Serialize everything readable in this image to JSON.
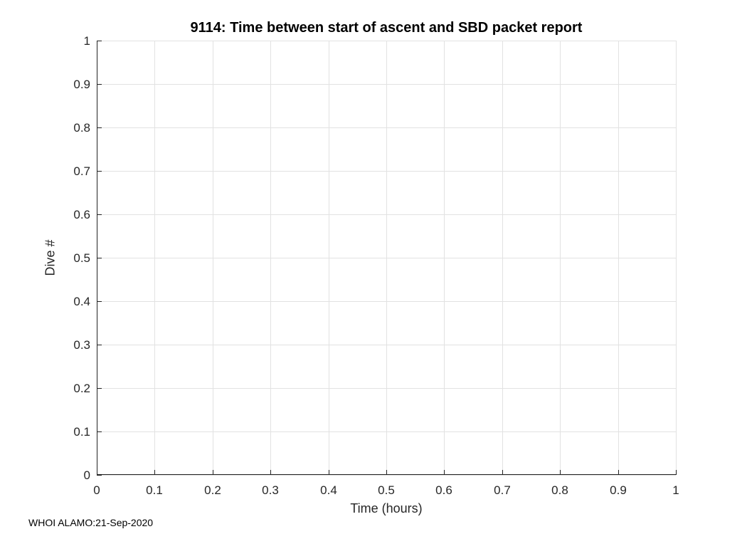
{
  "chart_data": {
    "type": "scatter",
    "title": "9114: Time between start of ascent and SBD packet report",
    "xlabel": "Time (hours)",
    "ylabel": "Dive #",
    "xlim": [
      0,
      1
    ],
    "ylim": [
      0,
      1
    ],
    "xticks": {
      "values": [
        0,
        0.1,
        0.2,
        0.3,
        0.4,
        0.5,
        0.6,
        0.7,
        0.8,
        0.9,
        1
      ],
      "labels": [
        "0",
        "0.1",
        "0.2",
        "0.3",
        "0.4",
        "0.5",
        "0.6",
        "0.7",
        "0.8",
        "0.9",
        "1"
      ]
    },
    "yticks": {
      "values": [
        0,
        0.1,
        0.2,
        0.3,
        0.4,
        0.5,
        0.6,
        0.7,
        0.8,
        0.9,
        1
      ],
      "labels": [
        "0",
        "0.1",
        "0.2",
        "0.3",
        "0.4",
        "0.5",
        "0.6",
        "0.7",
        "0.8",
        "0.9",
        "1"
      ]
    },
    "grid": true,
    "legend": null,
    "series": [],
    "colors": {
      "background": "#ffffff",
      "axis": "#222222",
      "grid": "#e2e2e2",
      "tick_text": "#262626",
      "title_text": "#000000"
    }
  },
  "footer": {
    "text": "WHOI ALAMO:21-Sep-2020"
  }
}
